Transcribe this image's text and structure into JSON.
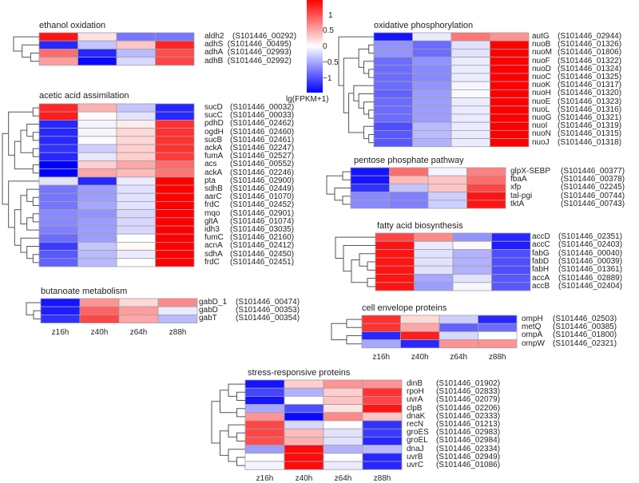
{
  "chart_data": {
    "type": "heatmap",
    "title": "",
    "columns": [
      "z16h",
      "z40h",
      "z64h",
      "z88h"
    ],
    "colorbar": {
      "title": "lg(FPKM+1)",
      "ticks": [
        "1",
        "0.5",
        "0",
        "−0.5",
        "−1"
      ],
      "tick_values": [
        1,
        0.5,
        0,
        -0.5,
        -1
      ],
      "range": [
        -1.3,
        1.3
      ],
      "low_color": "#0000ff",
      "mid_color": "#ffffff",
      "high_color": "#ff0000"
    },
    "panels": [
      {
        "id": "ethanol",
        "title": "ethanol oxidation",
        "show_xlabels": false,
        "rows": [
          {
            "gene": "aldh2",
            "id": "(S101446_00292)",
            "values": [
              1.2,
              0.15,
              -0.7,
              -0.7
            ]
          },
          {
            "gene": "adhS",
            "id": "(S101446_00495)",
            "values": [
              -1.1,
              -0.3,
              0.3,
              1.1
            ]
          },
          {
            "gene": "adhA",
            "id": "(S101446_02993)",
            "values": [
              0.75,
              -1.1,
              -0.35,
              0.9
            ]
          },
          {
            "gene": "adhB",
            "id": "(S101446_02992)",
            "values": [
              0.5,
              -1.25,
              -0.2,
              0.95
            ]
          }
        ]
      },
      {
        "id": "acetic",
        "title": "acetic acid assimilation",
        "show_xlabels": false,
        "rows": [
          {
            "gene": "sucD",
            "id": "(S101446_00032)",
            "values": [
              1.1,
              0.4,
              -0.3,
              -1.1
            ]
          },
          {
            "gene": "sucC",
            "id": "(S101446_00033)",
            "values": [
              1.15,
              0.02,
              -0.15,
              -1.1
            ]
          },
          {
            "gene": "pdhD",
            "id": "(S101446_02462)",
            "values": [
              -1.1,
              -0.05,
              0.1,
              1.05
            ]
          },
          {
            "gene": "ogdH",
            "id": "(S101446_02460)",
            "values": [
              -1.1,
              -0.05,
              0.2,
              1.05
            ]
          },
          {
            "gene": "sucB",
            "id": "(S101446_02461)",
            "values": [
              -1.1,
              -0.02,
              0.2,
              1.05
            ]
          },
          {
            "gene": "ackA",
            "id": "(S101446_02247)",
            "values": [
              -1.05,
              -0.25,
              0.25,
              1.05
            ]
          },
          {
            "gene": "fumA",
            "id": "(S101446_02527)",
            "values": [
              -1.1,
              -0.12,
              0.25,
              1.0
            ]
          },
          {
            "gene": "acs",
            "id": "(S101446_00552)",
            "values": [
              -1.3,
              0.25,
              0.45,
              0.75
            ]
          },
          {
            "gene": "ackA",
            "id": "(S101446_02246)",
            "values": [
              -1.3,
              0.45,
              0.35,
              0.7
            ]
          },
          {
            "gene": "pta",
            "id": "(S101446_02900)",
            "values": [
              -0.15,
              -1.1,
              -0.1,
              1.3
            ]
          },
          {
            "gene": "sdhB",
            "id": "(S101446_02449)",
            "values": [
              -0.7,
              -0.5,
              -0.15,
              1.3
            ]
          },
          {
            "gene": "aarC",
            "id": "(S101446_01070)",
            "values": [
              -0.7,
              -0.5,
              -0.15,
              1.3
            ]
          },
          {
            "gene": "frdC",
            "id": "(S101446_02452)",
            "values": [
              -0.7,
              -0.45,
              -0.15,
              1.3
            ]
          },
          {
            "gene": "mqo",
            "id": "(S101446_02901)",
            "values": [
              -0.6,
              -0.55,
              -0.2,
              1.3
            ]
          },
          {
            "gene": "gltA",
            "id": "(S101446_01074)",
            "values": [
              -0.6,
              -0.5,
              -0.2,
              1.3
            ]
          },
          {
            "gene": "idh3",
            "id": "(S101446_03035)",
            "values": [
              -0.65,
              -0.5,
              -0.2,
              1.3
            ]
          },
          {
            "gene": "fumC",
            "id": "(S101446_02160)",
            "values": [
              -0.75,
              -0.5,
              0.0,
              1.3
            ]
          },
          {
            "gene": "acnA",
            "id": "(S101446_02412)",
            "values": [
              -1.0,
              -0.3,
              0.03,
              1.3
            ]
          },
          {
            "gene": "sdhA",
            "id": "(S101446_02450)",
            "values": [
              -0.85,
              -0.35,
              -0.1,
              1.3
            ]
          },
          {
            "gene": "frdC",
            "id": "(S101446_02451)",
            "values": [
              -0.8,
              -0.35,
              0.0,
              1.3
            ]
          }
        ]
      },
      {
        "id": "butanoate",
        "title": "butanoate metabolism",
        "show_xlabels": true,
        "rows": [
          {
            "gene": "gabD_1",
            "id": "(S101446_00474)",
            "values": [
              -1.2,
              0.55,
              0.2,
              0.6
            ]
          },
          {
            "gene": "gabD",
            "id": "(S101446_00353)",
            "values": [
              -1.15,
              0.8,
              0.5,
              -0.1
            ]
          },
          {
            "gene": "gabT",
            "id": "(S101446_00354)",
            "values": [
              -1.05,
              0.95,
              0.45,
              -0.35
            ]
          }
        ]
      },
      {
        "id": "oxphos",
        "title": "oxidative phosphorylation",
        "show_xlabels": false,
        "rows": [
          {
            "gene": "autG",
            "id": "(S101446_02944)",
            "values": [
              -1.2,
              -0.1,
              0.7,
              0.55
            ]
          },
          {
            "gene": "nuoB",
            "id": "(S101446_01326)",
            "values": [
              -0.55,
              -0.75,
              -0.15,
              1.3
            ]
          },
          {
            "gene": "nuoM",
            "id": "(S101446_01806)",
            "values": [
              -0.55,
              -0.75,
              -0.15,
              1.3
            ]
          },
          {
            "gene": "nuoF",
            "id": "(S101446_01322)",
            "values": [
              -0.75,
              -0.55,
              -0.1,
              1.3
            ]
          },
          {
            "gene": "nuoD",
            "id": "(S101446_01324)",
            "values": [
              -0.75,
              -0.6,
              -0.1,
              1.3
            ]
          },
          {
            "gene": "nuoC",
            "id": "(S101446_01325)",
            "values": [
              -0.75,
              -0.6,
              -0.1,
              1.3
            ]
          },
          {
            "gene": "nuoK",
            "id": "(S101446_01317)",
            "values": [
              -0.75,
              -0.55,
              -0.05,
              1.3
            ]
          },
          {
            "gene": "nuoH",
            "id": "(S101446_01320)",
            "values": [
              -0.8,
              -0.5,
              -0.03,
              1.3
            ]
          },
          {
            "gene": "nuoE",
            "id": "(S101446_01323)",
            "values": [
              -0.75,
              -0.5,
              -0.1,
              1.3
            ]
          },
          {
            "gene": "nuoL",
            "id": "(S101446_01316)",
            "values": [
              -0.75,
              -0.5,
              -0.1,
              1.3
            ]
          },
          {
            "gene": "nuoG",
            "id": "(S101446_01321)",
            "values": [
              -0.75,
              -0.5,
              -0.1,
              1.3
            ]
          },
          {
            "gene": "nuoI",
            "id": "(S101446_01319)",
            "values": [
              -0.9,
              -0.35,
              -0.1,
              1.3
            ]
          },
          {
            "gene": "nuoN",
            "id": "(S101446_01315)",
            "values": [
              -0.85,
              -0.35,
              -0.1,
              1.3
            ]
          },
          {
            "gene": "nuoJ",
            "id": "(S101446_01318)",
            "values": [
              -0.85,
              -0.4,
              -0.1,
              1.3
            ]
          }
        ]
      },
      {
        "id": "pentose",
        "title": "pentose phosphate pathway",
        "show_xlabels": false,
        "rows": [
          {
            "gene": "glpX-SEBP",
            "id": "(S101446_00377)",
            "values": [
              -1.2,
              0.75,
              -0.05,
              0.65
            ]
          },
          {
            "gene": "fbaA",
            "id": "(S101446_00378)",
            "values": [
              -1.2,
              0.35,
              0.3,
              0.75
            ]
          },
          {
            "gene": "xfp",
            "id": "(S101446_02245)",
            "values": [
              -1.05,
              -0.3,
              0.3,
              0.95
            ]
          },
          {
            "gene": "tal-pgi",
            "id": "(S101446_00744)",
            "values": [
              -0.6,
              -0.65,
              -0.25,
              1.2
            ]
          },
          {
            "gene": "tktA",
            "id": "(S101446_00743)",
            "values": [
              -0.6,
              -0.65,
              -0.25,
              1.2
            ]
          }
        ]
      },
      {
        "id": "fatty",
        "title": "fatty acid biosynthesis",
        "show_xlabels": false,
        "rows": [
          {
            "gene": "accD",
            "id": "(S101446_02351)",
            "values": [
              0.95,
              0.6,
              -0.55,
              -1.1
            ]
          },
          {
            "gene": "accC",
            "id": "(S101446_02403)",
            "values": [
              1.2,
              -0.1,
              -0.02,
              -1.15
            ]
          },
          {
            "gene": "fabG",
            "id": "(S101446_00040)",
            "values": [
              1.2,
              -0.15,
              -0.4,
              -0.9
            ]
          },
          {
            "gene": "fabD",
            "id": "(S101446_00039)",
            "values": [
              1.2,
              -0.15,
              -0.4,
              -0.9
            ]
          },
          {
            "gene": "fabH",
            "id": "(S101446_01361)",
            "values": [
              1.2,
              -0.15,
              -0.4,
              -0.9
            ]
          },
          {
            "gene": "accA",
            "id": "(S101446_02889)",
            "values": [
              1.2,
              -0.45,
              -0.15,
              -0.85
            ]
          },
          {
            "gene": "accB",
            "id": "(S101446_02404)",
            "values": [
              1.2,
              -0.5,
              -0.05,
              -0.85
            ]
          }
        ]
      },
      {
        "id": "envelope",
        "title": "cell envelope proteins",
        "show_xlabels": true,
        "rows": [
          {
            "gene": "ompH",
            "id": "(S101446_02503)",
            "values": [
              1.05,
              0.2,
              -0.25,
              -1.1
            ]
          },
          {
            "gene": "metQ",
            "id": "(S101446_00385)",
            "values": [
              1.05,
              0.45,
              -0.8,
              -0.75
            ]
          },
          {
            "gene": "ompA",
            "id": "(S101446_01800)",
            "values": [
              -1.1,
              1.15,
              -0.2,
              0.0
            ]
          },
          {
            "gene": "ompW",
            "id": "(S101446_02321)",
            "values": [
              -0.45,
              -1.1,
              0.55,
              0.55
            ]
          }
        ]
      },
      {
        "id": "stress",
        "title": "stress-responsive proteins",
        "show_xlabels": true,
        "rows": [
          {
            "gene": "dinB",
            "id": "(S101446_01902)",
            "values": [
              -1.2,
              0.25,
              0.55,
              0.55
            ]
          },
          {
            "gene": "rpoH",
            "id": "(S101446_02833)",
            "values": [
              -0.95,
              -0.4,
              0.25,
              1.05
            ]
          },
          {
            "gene": "uvrA",
            "id": "(S101446_02079)",
            "values": [
              -1.2,
              0.0,
              0.3,
              0.95
            ]
          },
          {
            "gene": "clpB",
            "id": "(S101446_02206)",
            "values": [
              -0.45,
              -0.9,
              0.15,
              1.2
            ]
          },
          {
            "gene": "dnaK",
            "id": "(S101446_02333)",
            "values": [
              0.55,
              -1.25,
              0.6,
              0.3
            ]
          },
          {
            "gene": "recN",
            "id": "(S101446_01213)",
            "values": [
              0.95,
              -0.2,
              0.0,
              -1.05
            ]
          },
          {
            "gene": "groES",
            "id": "(S101446_02983)",
            "values": [
              0.95,
              0.35,
              -0.15,
              -1.0
            ]
          },
          {
            "gene": "groEL",
            "id": "(S101446_02984)",
            "values": [
              0.9,
              0.4,
              -0.15,
              -1.1
            ]
          },
          {
            "gene": "dnaJ",
            "id": "(S101446_02334)",
            "values": [
              -0.5,
              1.25,
              -0.4,
              -0.35
            ]
          },
          {
            "gene": "uvrB",
            "id": "(S101446_02949)",
            "values": [
              0.0,
              1.25,
              0.0,
              -1.1
            ]
          },
          {
            "gene": "uvrC",
            "id": "(S101446_01086)",
            "values": [
              -0.05,
              1.25,
              -0.1,
              -1.1
            ]
          }
        ]
      }
    ]
  }
}
